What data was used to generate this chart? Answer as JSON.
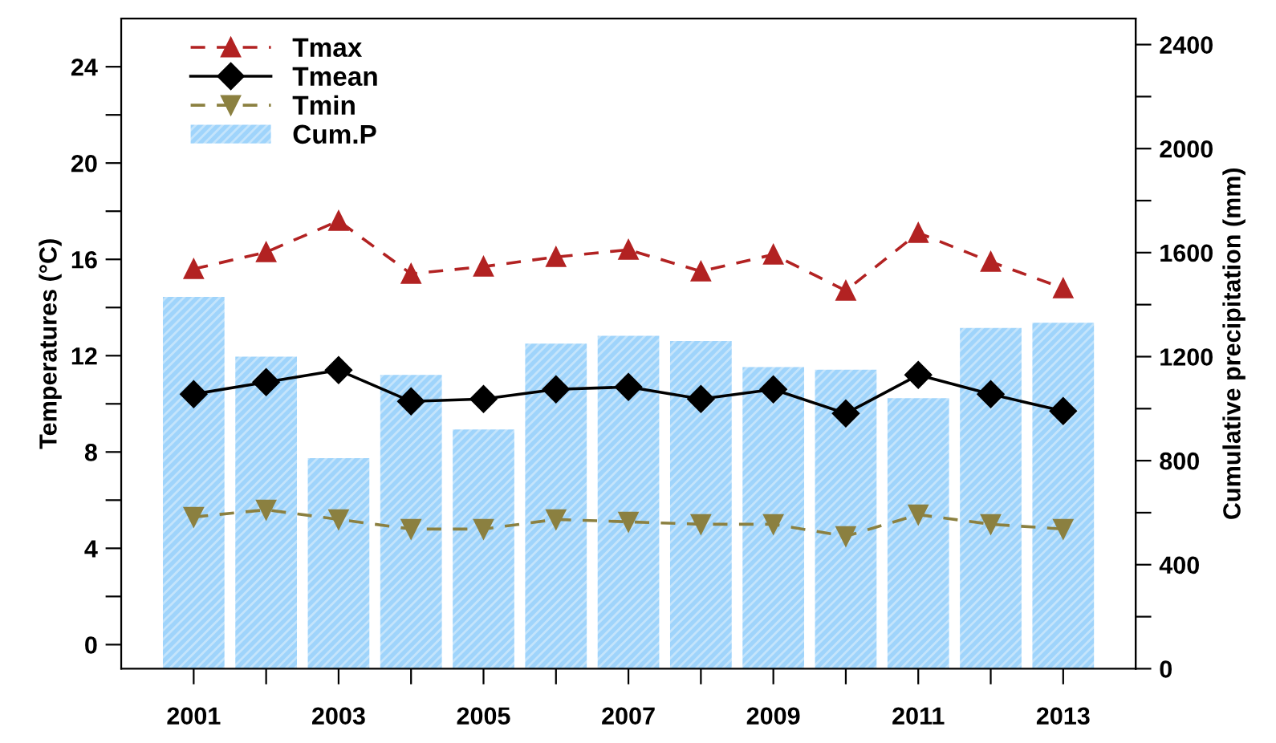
{
  "chart_data": {
    "type": "line",
    "ylabel": "Temperatures (°C)",
    "y2label": "Cumulative precipitation (mm)",
    "categories": [
      "2001",
      null,
      "2003",
      null,
      "2005",
      null,
      "2007",
      null,
      "2009",
      null,
      "2011",
      null,
      "2013"
    ],
    "series": [
      {
        "name": "Tmax",
        "color": "#b22222",
        "marker": "triangle",
        "line_style": "dashed",
        "values": [
          15.6,
          16.3,
          17.6,
          15.4,
          15.7,
          16.1,
          16.4,
          15.5,
          16.2,
          14.7,
          17.1,
          15.9,
          14.8
        ]
      },
      {
        "name": "Tmean",
        "color": "#000000",
        "marker": "diamond",
        "line_style": "solid",
        "values": [
          10.4,
          10.9,
          11.4,
          10.1,
          10.2,
          10.6,
          10.7,
          10.2,
          10.6,
          9.6,
          11.2,
          10.4,
          9.7
        ]
      },
      {
        "name": "Tmin",
        "color": "#8b8040",
        "marker": "triangle_down",
        "line_style": "dashed",
        "values": [
          5.3,
          5.6,
          5.2,
          4.8,
          4.8,
          5.2,
          5.1,
          5.0,
          5.0,
          4.5,
          5.4,
          5.0,
          4.8
        ]
      },
      {
        "name": "Cum.P",
        "type": "bar",
        "axis": "y2",
        "color": "#9fd4fb",
        "values": [
          1430,
          1200,
          810,
          1130,
          920,
          1250,
          1280,
          1260,
          1160,
          1150,
          1040,
          1310,
          1330
        ]
      }
    ],
    "ylim": [
      -1,
      26
    ],
    "yticks": [
      0,
      {
        "value": 2,
        "label": null
      },
      4,
      {
        "value": 6,
        "label": null
      },
      8,
      {
        "value": 10,
        "label": null
      },
      12,
      {
        "value": 14,
        "label": null
      },
      16,
      {
        "value": 18,
        "label": null
      },
      20,
      {
        "value": 22,
        "label": null
      },
      24
    ],
    "y2lim": [
      0,
      2500
    ],
    "y2ticks": [
      0,
      {
        "value": 200,
        "label": null
      },
      400,
      {
        "value": 600,
        "label": null
      },
      800,
      {
        "value": 1000,
        "label": null
      },
      1200,
      {
        "value": 1400,
        "label": null
      },
      1600,
      {
        "value": 1800,
        "label": null
      },
      2000,
      {
        "value": 2200,
        "label": null
      },
      2400
    ],
    "legend": "top left",
    "grid": false
  }
}
